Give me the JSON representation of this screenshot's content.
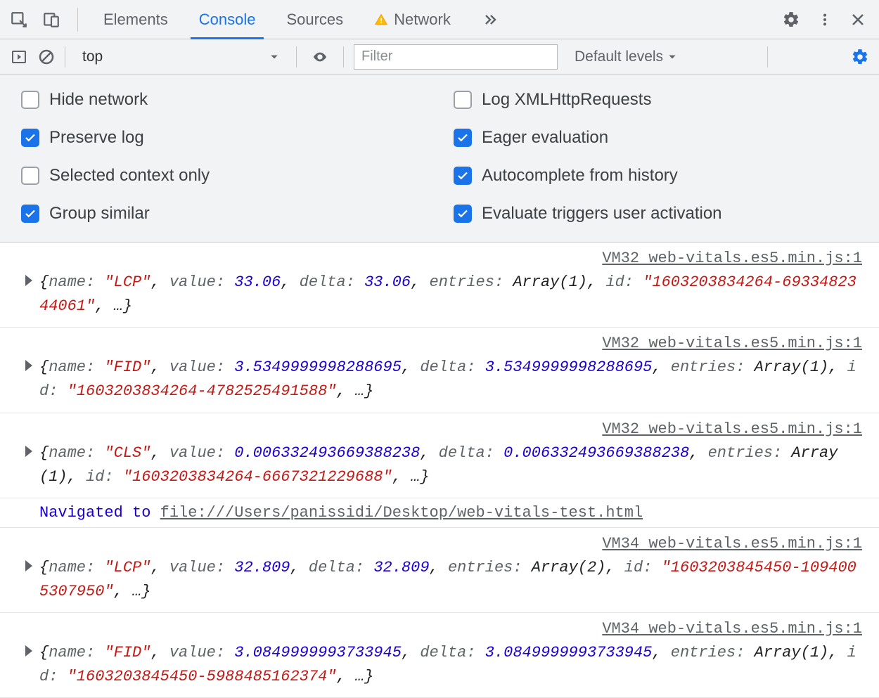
{
  "tabs": {
    "items": [
      "Elements",
      "Console",
      "Sources",
      "Network"
    ],
    "active_index": 1,
    "network_has_warning": true
  },
  "toolbar": {
    "context": "top",
    "filter_placeholder": "Filter",
    "levels_label": "Default levels"
  },
  "settings": {
    "left": [
      {
        "label": "Hide network",
        "checked": false
      },
      {
        "label": "Preserve log",
        "checked": true
      },
      {
        "label": "Selected context only",
        "checked": false
      },
      {
        "label": "Group similar",
        "checked": true
      }
    ],
    "right": [
      {
        "label": "Log XMLHttpRequests",
        "checked": false
      },
      {
        "label": "Eager evaluation",
        "checked": true
      },
      {
        "label": "Autocomplete from history",
        "checked": true
      },
      {
        "label": "Evaluate triggers user activation",
        "checked": true
      }
    ]
  },
  "colors": {
    "accent": "#1a73e8",
    "string": "#c41a16",
    "number": "#1c00cf",
    "key": "#5f6368",
    "bg_toolbar": "#f1f3f4"
  },
  "logs": [
    {
      "source": "VM32 web-vitals.es5.min.js:1",
      "obj": {
        "name": "LCP",
        "value": "33.06",
        "delta": "33.06",
        "entries": "Array(1)",
        "id": "1603203834264-6933482344061"
      }
    },
    {
      "source": "VM32 web-vitals.es5.min.js:1",
      "obj": {
        "name": "FID",
        "value": "3.5349999998288695",
        "delta": "3.5349999998288695",
        "entries": "Array(1)",
        "id": "1603203834264-4782525491588"
      }
    },
    {
      "source": "VM32 web-vitals.es5.min.js:1",
      "obj": {
        "name": "CLS",
        "value": "0.006332493669388238",
        "delta": "0.006332493669388238",
        "entries": "Array(1)",
        "id": "1603203834264-6667321229688"
      }
    }
  ],
  "navigation": {
    "label": "Navigated to ",
    "path": "file:///Users/panissidi/Desktop/web-vitals-test.html"
  },
  "logs2": [
    {
      "source": "VM34 web-vitals.es5.min.js:1",
      "obj": {
        "name": "LCP",
        "value": "32.809",
        "delta": "32.809",
        "entries": "Array(2)",
        "id": "1603203845450-1094005307950"
      }
    },
    {
      "source": "VM34 web-vitals.es5.min.js:1",
      "obj": {
        "name": "FID",
        "value": "3.0849999993733945",
        "delta": "3.0849999993733945",
        "entries": "Array(1)",
        "id": "1603203845450-5988485162374"
      }
    }
  ]
}
